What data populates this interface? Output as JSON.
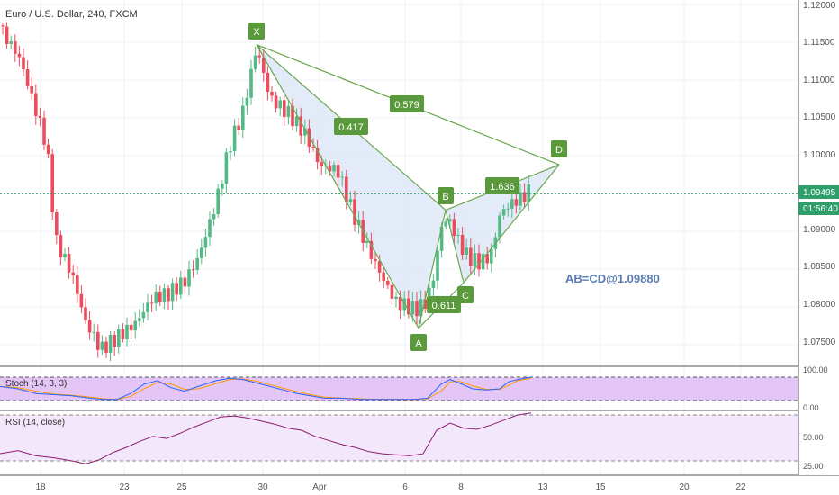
{
  "header": {
    "title": "Euro / U.S. Dollar, 240, FXCM"
  },
  "colors": {
    "bull": "#53b987",
    "bear": "#eb4d5c",
    "pattern": "#6aa84f",
    "pattern_fill": "#dce6f7",
    "label_bg": "#5a9a3c",
    "price_line": "#2e9e6b",
    "stoch_bg": "#e3c6f5",
    "rsi_bg": "#f3e8fb",
    "stoch_k": "#2962ff",
    "stoch_d": "#ff9800",
    "rsi_line": "#8e1b6f",
    "grid": "#eef0f3"
  },
  "price_axis": {
    "ticks": [
      "1.12000",
      "1.11500",
      "1.11000",
      "1.10500",
      "1.10000",
      "1.09000",
      "1.08500",
      "1.08000",
      "1.07500"
    ]
  },
  "price_tags": {
    "last": "1.09495",
    "countdown": "01:56:40"
  },
  "x_axis": {
    "ticks": [
      "18",
      "23",
      "25",
      "30",
      "Apr",
      "6",
      "8",
      "13",
      "15",
      "20",
      "22"
    ]
  },
  "pattern": {
    "points": [
      {
        "label": "X",
        "price": 1.1147
      },
      {
        "label": "A",
        "price": 1.0772
      },
      {
        "label": "B",
        "price": 1.0928
      },
      {
        "label": "C",
        "price": 1.0832
      },
      {
        "label": "D",
        "price": 1.0988
      }
    ],
    "ratios": [
      "0.417",
      "0.579",
      "0.611",
      "1.636"
    ],
    "annotation": "AB=CD@1.09880"
  },
  "stoch": {
    "label": "Stoch (14, 3, 3)",
    "ticks": [
      "100.00",
      "0.00"
    ]
  },
  "rsi": {
    "label": "RSI (14, close)",
    "ticks": [
      "50.00",
      "25.00"
    ]
  },
  "chart_data": {
    "type": "candlestick",
    "title": "Euro / U.S. Dollar, 240, FXCM",
    "ylim": [
      1.0725,
      1.1205
    ],
    "last_price": 1.09495,
    "path": [
      [
        0,
        1.1172
      ],
      [
        22,
        1.1132
      ],
      [
        52,
        1.1015
      ],
      [
        62,
        1.089
      ],
      [
        80,
        1.0845
      ],
      [
        95,
        1.0782
      ],
      [
        112,
        1.0745
      ],
      [
        130,
        1.076
      ],
      [
        150,
        1.0778
      ],
      [
        170,
        1.0812
      ],
      [
        185,
        1.0815
      ],
      [
        205,
        1.0832
      ],
      [
        220,
        1.0862
      ],
      [
        240,
        1.0935
      ],
      [
        255,
        1.101
      ],
      [
        270,
        1.1055
      ],
      [
        285,
        1.114
      ],
      [
        300,
        1.1072
      ],
      [
        320,
        1.1052
      ],
      [
        340,
        1.1022
      ],
      [
        355,
        1.0982
      ],
      [
        375,
        1.0975
      ],
      [
        392,
        1.0918
      ],
      [
        410,
        1.0868
      ],
      [
        428,
        1.0825
      ],
      [
        440,
        1.08
      ],
      [
        450,
        1.0795
      ],
      [
        462,
        1.079
      ],
      [
        474,
        1.08
      ],
      [
        482,
        1.0835
      ],
      [
        492,
        1.091
      ],
      [
        500,
        1.0905
      ],
      [
        510,
        1.0878
      ],
      [
        520,
        1.0858
      ],
      [
        532,
        1.0852
      ],
      [
        545,
        1.086
      ],
      [
        556,
        1.0918
      ],
      [
        568,
        1.093
      ],
      [
        580,
        1.0938
      ],
      [
        590,
        1.0948
      ]
    ],
    "stoch_k": [
      [
        0,
        60
      ],
      [
        20,
        50
      ],
      [
        40,
        30
      ],
      [
        60,
        25
      ],
      [
        80,
        20
      ],
      [
        100,
        10
      ],
      [
        115,
        5
      ],
      [
        130,
        5
      ],
      [
        145,
        30
      ],
      [
        160,
        70
      ],
      [
        175,
        85
      ],
      [
        190,
        55
      ],
      [
        205,
        40
      ],
      [
        220,
        60
      ],
      [
        240,
        85
      ],
      [
        255,
        95
      ],
      [
        270,
        90
      ],
      [
        285,
        75
      ],
      [
        300,
        60
      ],
      [
        315,
        45
      ],
      [
        330,
        30
      ],
      [
        345,
        20
      ],
      [
        360,
        10
      ],
      [
        380,
        10
      ],
      [
        400,
        5
      ],
      [
        420,
        5
      ],
      [
        440,
        5
      ],
      [
        460,
        5
      ],
      [
        475,
        10
      ],
      [
        490,
        70
      ],
      [
        500,
        90
      ],
      [
        510,
        75
      ],
      [
        525,
        50
      ],
      [
        540,
        45
      ],
      [
        555,
        50
      ],
      [
        565,
        80
      ],
      [
        575,
        90
      ],
      [
        590,
        100
      ]
    ],
    "rsi": [
      [
        0,
        32
      ],
      [
        20,
        35
      ],
      [
        40,
        30
      ],
      [
        60,
        28
      ],
      [
        80,
        25
      ],
      [
        95,
        22
      ],
      [
        110,
        26
      ],
      [
        125,
        33
      ],
      [
        140,
        38
      ],
      [
        155,
        44
      ],
      [
        170,
        49
      ],
      [
        185,
        47
      ],
      [
        200,
        52
      ],
      [
        215,
        58
      ],
      [
        230,
        63
      ],
      [
        245,
        68
      ],
      [
        260,
        69
      ],
      [
        275,
        67
      ],
      [
        290,
        64
      ],
      [
        305,
        61
      ],
      [
        320,
        57
      ],
      [
        335,
        55
      ],
      [
        350,
        49
      ],
      [
        365,
        45
      ],
      [
        380,
        41
      ],
      [
        395,
        38
      ],
      [
        410,
        34
      ],
      [
        425,
        32
      ],
      [
        440,
        31
      ],
      [
        455,
        30
      ],
      [
        470,
        32
      ],
      [
        485,
        55
      ],
      [
        500,
        62
      ],
      [
        515,
        57
      ],
      [
        530,
        56
      ],
      [
        545,
        60
      ],
      [
        560,
        65
      ],
      [
        575,
        70
      ],
      [
        590,
        72
      ]
    ]
  }
}
